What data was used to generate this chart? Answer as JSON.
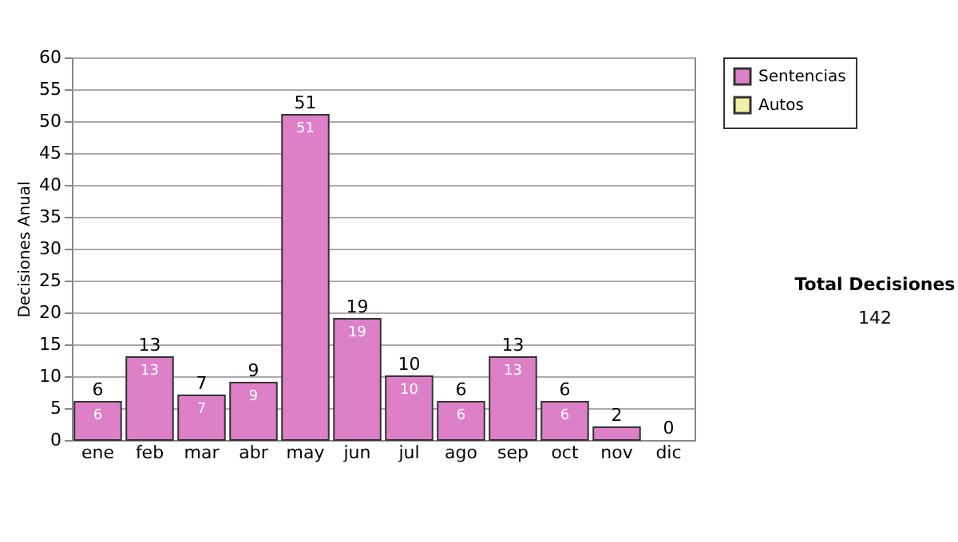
{
  "chart_data": {
    "type": "bar",
    "stacked": true,
    "ylabel": "Decisiones Anual",
    "categories": [
      "ene",
      "feb",
      "mar",
      "abr",
      "may",
      "jun",
      "jul",
      "ago",
      "sep",
      "oct",
      "nov",
      "dic"
    ],
    "series": [
      {
        "name": "Sentencias",
        "color": "#dd80c8",
        "values": [
          6,
          13,
          7,
          9,
          51,
          19,
          10,
          6,
          13,
          6,
          2,
          0
        ],
        "value_labels": [
          "6",
          "13",
          "7",
          "9",
          "51",
          "19",
          "10",
          "6",
          "13",
          "6",
          null,
          null
        ]
      },
      {
        "name": "Autos",
        "color": "#f0f0a8",
        "values": [
          0,
          0,
          0,
          0,
          0,
          0,
          0,
          0,
          0,
          0,
          0,
          0
        ]
      }
    ],
    "totals": [
      "6",
      "13",
      "7",
      "9",
      "51",
      "19",
      "10",
      "6",
      "13",
      "6",
      "2",
      "0"
    ],
    "ylim": [
      0,
      60
    ],
    "yticks": [
      0,
      5,
      10,
      15,
      20,
      25,
      30,
      35,
      40,
      45,
      50,
      55,
      60
    ],
    "grid": "y",
    "legend": "right",
    "annotations": [
      "Total Decisiones",
      "142"
    ]
  }
}
